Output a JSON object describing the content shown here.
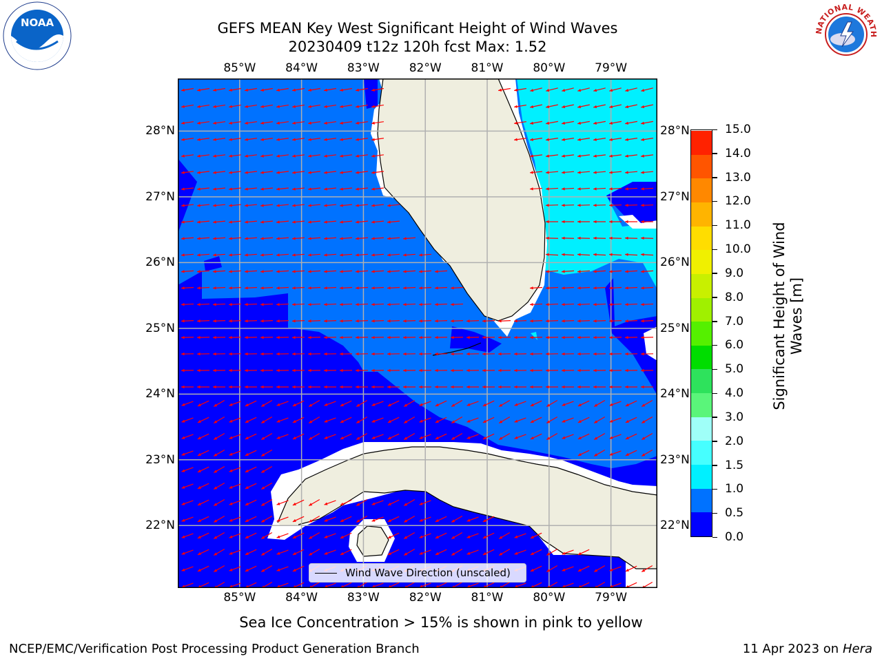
{
  "header": {
    "title_line1": "GEFS MEAN Key West Significant Height of Wind Waves",
    "title_line2": "20230409 t12z 120h fcst   Max: 1.52"
  },
  "logos": {
    "left": "NOAA",
    "right": "NATIONAL WEATHER SERVICE"
  },
  "axes": {
    "lon_ticks": [
      "85°W",
      "84°W",
      "83°W",
      "82°W",
      "81°W",
      "80°W",
      "79°W"
    ],
    "lat_ticks": [
      "28°N",
      "27°N",
      "26°N",
      "25°N",
      "24°N",
      "23°N",
      "22°N"
    ]
  },
  "map": {
    "lon_range": [
      -86.0,
      -78.25
    ],
    "lat_range": [
      21.05,
      28.8
    ],
    "legend_label": "Wind Wave Direction (unscaled)",
    "arrow_color": "#ff0000",
    "land_color": "#efeedf",
    "grid_color": "#b0b0b0"
  },
  "colorbar": {
    "title_line1": "Significant Height of Wind",
    "title_line2": "Waves [m]",
    "tick_labels": [
      "0.0",
      "0.5",
      "1.0",
      "1.5",
      "2.0",
      "3.0",
      "4.0",
      "5.0",
      "6.0",
      "7.0",
      "8.0",
      "9.0",
      "10.0",
      "11.0",
      "12.0",
      "13.0",
      "14.0",
      "15.0"
    ],
    "colors": [
      "#0000ff",
      "#0072ff",
      "#00f0ff",
      "#46ffff",
      "#9ffff8",
      "#5af57a",
      "#2ee25c",
      "#00dd00",
      "#55f000",
      "#a0f000",
      "#c8f000",
      "#f0f000",
      "#ffdd00",
      "#ffb400",
      "#ff8800",
      "#ff5500",
      "#ff2200",
      "#ff0000"
    ]
  },
  "caption": "Sea Ice Concentration > 15% is shown in pink to yellow",
  "footer": {
    "left": "NCEP/EMC/Verification Post Processing Product Generation Branch",
    "right_prefix": "11 Apr 2023 on ",
    "right_host": "Hera"
  }
}
